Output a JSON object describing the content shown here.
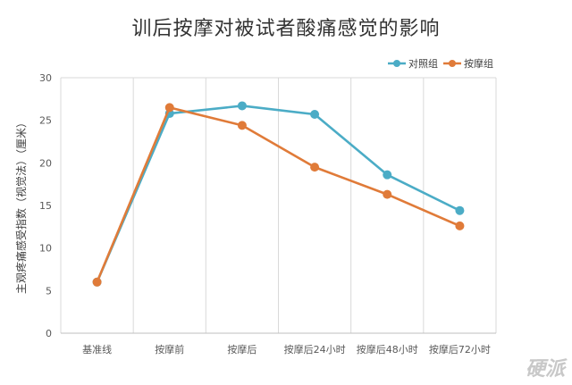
{
  "chart_data": {
    "type": "line",
    "title": "训后按摩对被试者酸痛感觉的影响",
    "ylabel": "主观疼痛感受指数（视觉法）（厘米）",
    "xlabel": "",
    "categories": [
      "基准线",
      "按摩前",
      "按摩后",
      "按摩后24小时",
      "按摩后48小时",
      "按摩后72小时"
    ],
    "ylim": [
      0,
      30
    ],
    "yticks": [
      0,
      5,
      10,
      15,
      20,
      25,
      30
    ],
    "grid": "vertical",
    "legend_position": "top-right",
    "series": [
      {
        "name": "对照组",
        "color": "#4bacc6",
        "values": [
          6,
          25.8,
          26.7,
          25.7,
          18.6,
          14.4
        ]
      },
      {
        "name": "按摩组",
        "color": "#e07b39",
        "values": [
          6,
          26.5,
          24.4,
          19.5,
          16.3,
          12.6
        ]
      }
    ]
  },
  "watermark": "硬派"
}
